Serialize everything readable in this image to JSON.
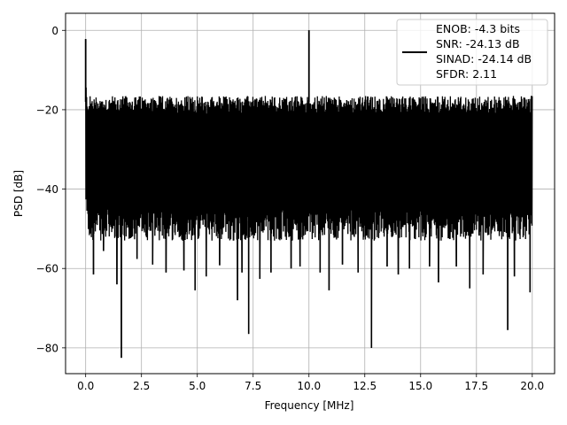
{
  "chart_data": {
    "type": "line",
    "xlabel": "Frequency [MHz]",
    "ylabel": "PSD [dB]",
    "xlim": [
      -0.9,
      21.0
    ],
    "ylim": [
      -86.5,
      4.3
    ],
    "xticks": [
      0.0,
      2.5,
      5.0,
      7.5,
      10.0,
      12.5,
      15.0,
      17.5,
      20.0
    ],
    "xtick_labels": [
      "0.0",
      "2.5",
      "5.0",
      "7.5",
      "10.0",
      "12.5",
      "15.0",
      "17.5",
      "20.0"
    ],
    "yticks": [
      0,
      -20,
      -40,
      -60,
      -80
    ],
    "ytick_labels": [
      "0",
      "−20",
      "−40",
      "−60",
      "−80"
    ],
    "grid": true,
    "legend_position": "top-right",
    "series": [
      {
        "legend_lines": [
          "ENOB: -4.3 bits",
          "SNR: -24.13 dB",
          "SINAD: -24.14 dB",
          "SFDR: 2.11"
        ],
        "color": "#000000",
        "noise_band": {
          "x_range": [
            0.0,
            20.0
          ],
          "upper_db": [
            -21,
            -16.5
          ],
          "lower_db": [
            -53,
            -45
          ]
        },
        "peaks": [
          {
            "x": 0.0,
            "y": -2.2
          },
          {
            "x": 10.0,
            "y": 0.0
          }
        ],
        "dips": [
          {
            "x": 0.35,
            "y": -61.5
          },
          {
            "x": 0.8,
            "y": -55.6
          },
          {
            "x": 1.4,
            "y": -64.0
          },
          {
            "x": 1.6,
            "y": -82.5
          },
          {
            "x": 2.3,
            "y": -57.6
          },
          {
            "x": 3.0,
            "y": -59.0
          },
          {
            "x": 3.6,
            "y": -61.0
          },
          {
            "x": 4.4,
            "y": -60.5
          },
          {
            "x": 4.9,
            "y": -65.5
          },
          {
            "x": 5.4,
            "y": -62.0
          },
          {
            "x": 6.0,
            "y": -59.2
          },
          {
            "x": 6.8,
            "y": -68.0
          },
          {
            "x": 7.0,
            "y": -61.0
          },
          {
            "x": 7.3,
            "y": -76.5
          },
          {
            "x": 7.8,
            "y": -62.6
          },
          {
            "x": 8.3,
            "y": -61.0
          },
          {
            "x": 9.2,
            "y": -60.0
          },
          {
            "x": 9.6,
            "y": -59.5
          },
          {
            "x": 10.5,
            "y": -61.0
          },
          {
            "x": 10.9,
            "y": -65.5
          },
          {
            "x": 11.5,
            "y": -59.0
          },
          {
            "x": 12.2,
            "y": -61.0
          },
          {
            "x": 12.8,
            "y": -80.0
          },
          {
            "x": 13.5,
            "y": -59.5
          },
          {
            "x": 14.0,
            "y": -61.5
          },
          {
            "x": 14.5,
            "y": -60.0
          },
          {
            "x": 15.4,
            "y": -59.5
          },
          {
            "x": 15.8,
            "y": -63.5
          },
          {
            "x": 16.6,
            "y": -59.5
          },
          {
            "x": 17.2,
            "y": -65.0
          },
          {
            "x": 17.8,
            "y": -61.5
          },
          {
            "x": 18.9,
            "y": -75.5
          },
          {
            "x": 19.2,
            "y": -62.0
          },
          {
            "x": 19.9,
            "y": -66.0
          }
        ]
      }
    ]
  }
}
